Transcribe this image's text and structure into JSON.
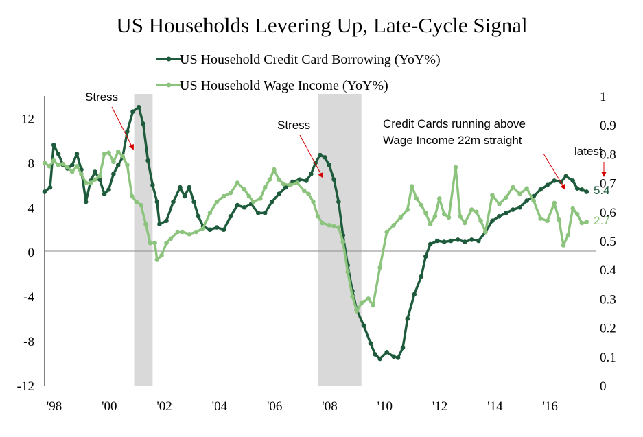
{
  "chart_data": {
    "type": "line",
    "title": "US Households Levering Up, Late-Cycle Signal",
    "xlim": [
      1998.0,
      2018.0
    ],
    "ylim_left": [
      -12,
      14
    ],
    "ylim_right": [
      0,
      1
    ],
    "x_ticks": [
      "'98",
      "'00",
      "'02",
      "'04",
      "'06",
      "'08",
      "'10",
      "'12",
      "'14",
      "'16"
    ],
    "y_ticks_left": [
      "12",
      "8",
      "4",
      "0",
      "-4",
      "-8",
      "-12"
    ],
    "y_ticks_right": [
      "1",
      "0.9",
      "0.8",
      "0.7",
      "0.6",
      "0.5",
      "0.4",
      "0.3",
      "0.2",
      "0.1",
      "0"
    ],
    "recessions": [
      [
        2001.25,
        2001.92
      ],
      [
        2007.92,
        2009.5
      ]
    ],
    "series": [
      {
        "name": "US Household Credit Card Borrowing (YoY%)",
        "color": "#1e5b3c",
        "last_label": "5.4",
        "points": [
          [
            1998.0,
            5.4
          ],
          [
            1998.2,
            5.8
          ],
          [
            1998.33,
            9.6
          ],
          [
            1998.5,
            8.8
          ],
          [
            1998.67,
            7.8
          ],
          [
            1998.83,
            7.5
          ],
          [
            1999.0,
            7.8
          ],
          [
            1999.17,
            8.8
          ],
          [
            1999.33,
            7.4
          ],
          [
            1999.5,
            4.5
          ],
          [
            1999.67,
            6.4
          ],
          [
            1999.83,
            7.2
          ],
          [
            2000.0,
            6.5
          ],
          [
            2000.17,
            5.2
          ],
          [
            2000.33,
            5.6
          ],
          [
            2000.5,
            7.0
          ],
          [
            2000.67,
            7.8
          ],
          [
            2000.83,
            8.5
          ],
          [
            2001.0,
            10.8
          ],
          [
            2001.2,
            12.6
          ],
          [
            2001.42,
            13.0
          ],
          [
            2001.58,
            11.5
          ],
          [
            2001.75,
            8.2
          ],
          [
            2001.92,
            6.0
          ],
          [
            2002.08,
            4.5
          ],
          [
            2002.17,
            2.5
          ],
          [
            2002.42,
            2.8
          ],
          [
            2002.67,
            4.5
          ],
          [
            2002.92,
            5.8
          ],
          [
            2003.08,
            5.0
          ],
          [
            2003.25,
            5.8
          ],
          [
            2003.42,
            4.5
          ],
          [
            2003.58,
            3.2
          ],
          [
            2003.75,
            2.3
          ],
          [
            2004.0,
            2.0
          ],
          [
            2004.25,
            2.2
          ],
          [
            2004.5,
            2.0
          ],
          [
            2004.75,
            3.2
          ],
          [
            2005.0,
            4.2
          ],
          [
            2005.25,
            4.0
          ],
          [
            2005.5,
            4.3
          ],
          [
            2005.75,
            3.5
          ],
          [
            2006.0,
            3.5
          ],
          [
            2006.25,
            4.5
          ],
          [
            2006.5,
            5.2
          ],
          [
            2006.75,
            5.8
          ],
          [
            2007.0,
            6.3
          ],
          [
            2007.25,
            6.5
          ],
          [
            2007.5,
            6.4
          ],
          [
            2007.67,
            7.0
          ],
          [
            2007.83,
            8.0
          ],
          [
            2008.0,
            8.7
          ],
          [
            2008.17,
            8.5
          ],
          [
            2008.33,
            7.8
          ],
          [
            2008.5,
            6.5
          ],
          [
            2008.67,
            4.5
          ],
          [
            2008.83,
            1.5
          ],
          [
            2009.0,
            -1.2
          ],
          [
            2009.17,
            -3.5
          ],
          [
            2009.33,
            -5.2
          ],
          [
            2009.58,
            -6.6
          ],
          [
            2009.83,
            -8.2
          ],
          [
            2010.0,
            -9.2
          ],
          [
            2010.17,
            -9.6
          ],
          [
            2010.42,
            -9.0
          ],
          [
            2010.67,
            -9.4
          ],
          [
            2010.83,
            -9.5
          ],
          [
            2011.0,
            -8.6
          ],
          [
            2011.17,
            -6.0
          ],
          [
            2011.42,
            -3.8
          ],
          [
            2011.67,
            -2.2
          ],
          [
            2011.83,
            -0.4
          ],
          [
            2012.0,
            0.7
          ],
          [
            2012.25,
            1.0
          ],
          [
            2012.5,
            0.9
          ],
          [
            2012.75,
            1.0
          ],
          [
            2013.0,
            1.1
          ],
          [
            2013.25,
            0.9
          ],
          [
            2013.5,
            1.1
          ],
          [
            2013.75,
            1.0
          ],
          [
            2014.0,
            1.8
          ],
          [
            2014.25,
            2.8
          ],
          [
            2014.5,
            3.2
          ],
          [
            2014.75,
            3.5
          ],
          [
            2015.0,
            3.8
          ],
          [
            2015.25,
            4.0
          ],
          [
            2015.5,
            4.6
          ],
          [
            2015.75,
            5.0
          ],
          [
            2016.0,
            5.6
          ],
          [
            2016.25,
            6.0
          ],
          [
            2016.5,
            6.4
          ],
          [
            2016.75,
            6.3
          ],
          [
            2016.92,
            6.8
          ],
          [
            2017.17,
            6.4
          ],
          [
            2017.33,
            5.7
          ],
          [
            2017.5,
            5.6
          ],
          [
            2017.67,
            5.4
          ]
        ]
      },
      {
        "name": "US Household Wage Income (YoY%)",
        "color": "#8cc47e",
        "last_label": "2.7",
        "points": [
          [
            1998.0,
            8.0
          ],
          [
            1998.17,
            7.7
          ],
          [
            1998.33,
            8.2
          ],
          [
            1998.5,
            7.8
          ],
          [
            1998.67,
            7.9
          ],
          [
            1998.83,
            7.6
          ],
          [
            1999.0,
            7.2
          ],
          [
            1999.17,
            7.7
          ],
          [
            1999.33,
            7.0
          ],
          [
            1999.5,
            6.2
          ],
          [
            1999.67,
            6.2
          ],
          [
            1999.83,
            6.5
          ],
          [
            2000.0,
            6.8
          ],
          [
            2000.17,
            8.8
          ],
          [
            2000.33,
            8.9
          ],
          [
            2000.5,
            8.1
          ],
          [
            2000.67,
            9.0
          ],
          [
            2000.83,
            8.6
          ],
          [
            2001.0,
            7.8
          ],
          [
            2001.17,
            5.0
          ],
          [
            2001.33,
            4.5
          ],
          [
            2001.5,
            4.2
          ],
          [
            2001.67,
            2.5
          ],
          [
            2001.83,
            0.8
          ],
          [
            2002.0,
            0.8
          ],
          [
            2002.08,
            -0.7
          ],
          [
            2002.25,
            -0.3
          ],
          [
            2002.42,
            0.8
          ],
          [
            2002.58,
            1.2
          ],
          [
            2002.83,
            1.8
          ],
          [
            2003.0,
            1.8
          ],
          [
            2003.25,
            1.6
          ],
          [
            2003.5,
            1.8
          ],
          [
            2003.75,
            2.1
          ],
          [
            2004.0,
            3.5
          ],
          [
            2004.25,
            4.5
          ],
          [
            2004.5,
            5.0
          ],
          [
            2004.75,
            5.3
          ],
          [
            2005.0,
            6.2
          ],
          [
            2005.25,
            5.6
          ],
          [
            2005.42,
            5.0
          ],
          [
            2005.58,
            4.5
          ],
          [
            2005.83,
            4.8
          ],
          [
            2006.0,
            5.8
          ],
          [
            2006.17,
            6.5
          ],
          [
            2006.33,
            7.4
          ],
          [
            2006.5,
            6.5
          ],
          [
            2006.67,
            6.1
          ],
          [
            2006.92,
            6.0
          ],
          [
            2007.17,
            6.2
          ],
          [
            2007.42,
            5.5
          ],
          [
            2007.58,
            5.2
          ],
          [
            2007.75,
            4.5
          ],
          [
            2007.92,
            3.2
          ],
          [
            2008.08,
            2.6
          ],
          [
            2008.33,
            2.4
          ],
          [
            2008.5,
            2.3
          ],
          [
            2008.67,
            2.2
          ],
          [
            2008.83,
            0.9
          ],
          [
            2009.0,
            -1.8
          ],
          [
            2009.17,
            -4.0
          ],
          [
            2009.33,
            -5.3
          ],
          [
            2009.5,
            -4.6
          ],
          [
            2009.75,
            -4.2
          ],
          [
            2009.92,
            -4.8
          ],
          [
            2010.17,
            -1.4
          ],
          [
            2010.42,
            1.8
          ],
          [
            2010.67,
            2.4
          ],
          [
            2010.92,
            3.1
          ],
          [
            2011.17,
            3.8
          ],
          [
            2011.33,
            5.9
          ],
          [
            2011.5,
            4.8
          ],
          [
            2011.67,
            4.2
          ],
          [
            2011.83,
            3.5
          ],
          [
            2012.0,
            2.5
          ],
          [
            2012.17,
            3.2
          ],
          [
            2012.33,
            4.8
          ],
          [
            2012.5,
            3.4
          ],
          [
            2012.67,
            3.1
          ],
          [
            2012.92,
            7.6
          ],
          [
            2013.08,
            3.2
          ],
          [
            2013.25,
            2.6
          ],
          [
            2013.5,
            3.8
          ],
          [
            2013.67,
            3.6
          ],
          [
            2013.83,
            2.8
          ],
          [
            2014.0,
            1.8
          ],
          [
            2014.25,
            5.1
          ],
          [
            2014.5,
            4.3
          ],
          [
            2014.75,
            4.9
          ],
          [
            2015.0,
            5.8
          ],
          [
            2015.25,
            5.2
          ],
          [
            2015.5,
            5.7
          ],
          [
            2015.75,
            4.6
          ],
          [
            2016.0,
            3.0
          ],
          [
            2016.25,
            2.8
          ],
          [
            2016.5,
            4.4
          ],
          [
            2016.67,
            2.9
          ],
          [
            2016.83,
            0.6
          ],
          [
            2017.0,
            1.5
          ],
          [
            2017.17,
            3.9
          ],
          [
            2017.33,
            3.4
          ],
          [
            2017.5,
            2.6
          ],
          [
            2017.67,
            2.7
          ]
        ]
      }
    ],
    "annotations": [
      {
        "text": "Stress"
      },
      {
        "text": "Stress"
      },
      {
        "lines": [
          "Credit Cards running above",
          "Wage Income 22m straight"
        ]
      },
      {
        "text": "latest"
      }
    ]
  }
}
